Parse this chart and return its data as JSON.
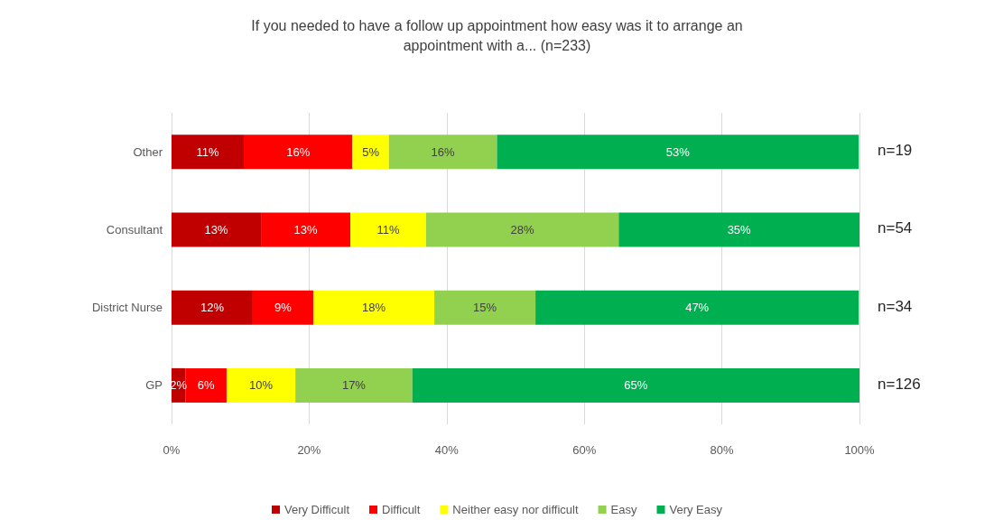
{
  "chart_data": {
    "type": "bar",
    "orientation": "horizontal",
    "stacked": true,
    "title": "If you needed to have a follow up appointment how easy was it to arrange an\nappointment with a... (n=233)",
    "categories": [
      "Other",
      "Consultant",
      "District Nurse",
      "GP"
    ],
    "series": [
      {
        "name": "Very Difficult",
        "color": "#c00000",
        "values": [
          10.5,
          13,
          11.8,
          2
        ],
        "value_labels": [
          "11%",
          "13%",
          "12%",
          "2%"
        ]
      },
      {
        "name": "Difficult",
        "color": "#ff0000",
        "values": [
          15.8,
          13,
          8.8,
          6
        ],
        "value_labels": [
          "16%",
          "13%",
          "9%",
          "6%"
        ]
      },
      {
        "name": "Neither easy nor difficult",
        "color": "#ffff00",
        "values": [
          5.3,
          11,
          17.6,
          10
        ],
        "value_labels": [
          "5%",
          "11%",
          "18%",
          "10%"
        ]
      },
      {
        "name": "Easy",
        "color": "#92d050",
        "values": [
          15.7,
          28,
          14.7,
          17
        ],
        "value_labels": [
          "16%",
          "28%",
          "15%",
          "17%"
        ]
      },
      {
        "name": "Very Easy",
        "color": "#00b050",
        "values": [
          52.6,
          35,
          47,
          65
        ],
        "value_labels": [
          "53%",
          "35%",
          "47%",
          "65%"
        ]
      }
    ],
    "xlim": [
      0,
      100
    ],
    "xticks": [
      {
        "value": 0,
        "label": "0%"
      },
      {
        "value": 20,
        "label": "20%"
      },
      {
        "value": 40,
        "label": "40%"
      },
      {
        "value": 60,
        "label": "60%"
      },
      {
        "value": 80,
        "label": "80%"
      },
      {
        "value": 100,
        "label": "100%"
      }
    ],
    "annotations": [
      "n=19",
      "n=54",
      "n=34",
      "n=126"
    ],
    "grid": "x",
    "legend": "bottom"
  }
}
